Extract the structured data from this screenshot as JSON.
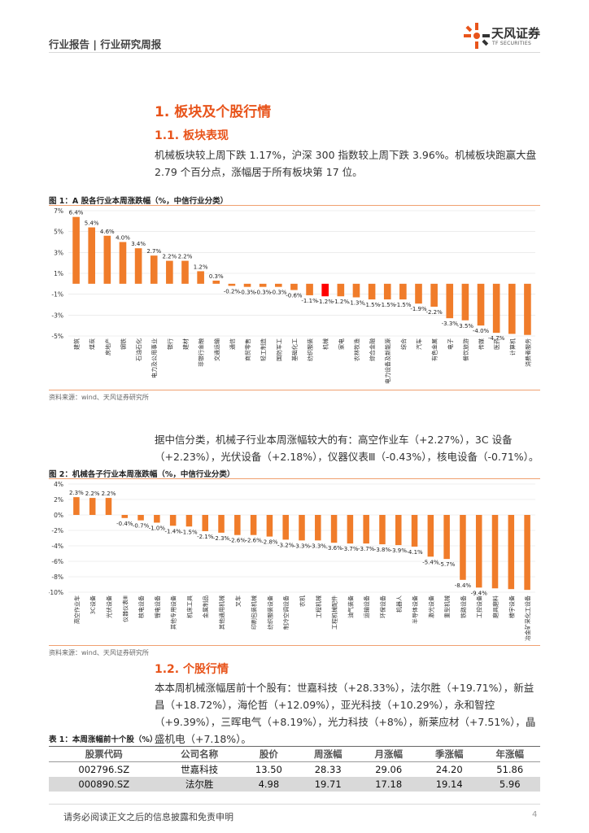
{
  "header": {
    "report_type": "行业报告 | 行业研究周报",
    "brand_name": "天风证券",
    "brand_sub": "TF SECURITIES"
  },
  "section1": {
    "heading": "1. 板块及个股行情",
    "sub_heading": "1.1. 板块表现",
    "paragraph": "机械板块较上周下跌 1.17%，沪深 300 指数较上周下跌 3.96%。机械板块跑赢大盘 2.79 个百分点，涨幅居于所有板块第 17 位。"
  },
  "figure1": {
    "title": "图 1：A 股各行业本周涨跌幅（%，中信行业分类）",
    "source": "资料来源：wind、天风证券研究所"
  },
  "para2": "据中信分类，机械子行业本周涨幅较大的有：高空作业车（+2.27%），3C 设备（+2.23%），光伏设备（+2.18%），仪器仪表Ⅲ（-0.43%），核电设备（-0.71%）。",
  "figure2": {
    "title": "图 2：机械各子行业本周涨跌幅（%，中信行业分类）",
    "source": "资料来源：wind、天风证券研究所"
  },
  "section12": {
    "sub_heading": "1.2. 个股行情",
    "paragraph": "本本周机械涨幅居前十个股有：世嘉科技（+28.33%），法尔胜（+19.71%），新益昌（+18.72%），海伦哲（+12.09%），亚光科技（+10.29%），永和智控（+9.39%），三晖电气（+8.19%），光力科技（+8%），新莱应材（+7.51%），晶盛机电（+7.18%）。"
  },
  "table1": {
    "title": "表 1：本周涨幅前十个股（%）",
    "headers": [
      "股票代码",
      "公司名称",
      "股价",
      "周涨幅",
      "月涨幅",
      "季涨幅",
      "年涨幅"
    ],
    "rows": [
      [
        "002796.SZ",
        "世嘉科技",
        "13.50",
        "28.33",
        "29.06",
        "24.20",
        "51.86"
      ],
      [
        "000890.SZ",
        "法尔胜",
        "4.98",
        "19.71",
        "17.18",
        "19.14",
        "5.96"
      ]
    ]
  },
  "footer": {
    "disclaimer": "请务必阅读正文之后的信息披露和免责申明",
    "page": "4"
  },
  "colors": {
    "accent": "#e8541b",
    "bar": "#f07c2a",
    "highlight": "#ff0000"
  },
  "chart_data": [
    {
      "type": "bar",
      "title": "图 1：A 股各行业本周涨跌幅（%，中信行业分类）",
      "ylim": [
        -5,
        7
      ],
      "yticks": [
        7,
        5,
        3,
        1,
        -1,
        -3,
        -5
      ],
      "ytick_labels": [
        "7%",
        "5%",
        "3%",
        "1%",
        "-1%",
        "-3%",
        "-5%"
      ],
      "highlight_category": "机械",
      "categories": [
        "建筑",
        "煤炭",
        "房地产",
        "钢铁",
        "石油石化",
        "电力及公用事业",
        "银行",
        "建材",
        "非银行金融",
        "交通运输",
        "通信",
        "商贸零售",
        "轻工制造",
        "国防军工",
        "基础化工",
        "纺织服装",
        "机械",
        "家电",
        "农林牧渔",
        "综合金融",
        "电力设备及新能源",
        "综合",
        "汽车",
        "有色金属",
        "电子",
        "餐饮旅游",
        "传媒",
        "医药",
        "计算机",
        "消费者服务"
      ],
      "values": [
        6.4,
        5.4,
        4.6,
        4.0,
        3.4,
        2.7,
        2.2,
        2.2,
        1.2,
        0.3,
        -0.2,
        -0.3,
        -0.3,
        -0.3,
        -0.6,
        -1.1,
        -1.2,
        -1.2,
        -1.3,
        -1.5,
        -1.5,
        -1.5,
        -1.9,
        -2.2,
        -3.3,
        -3.5,
        -4.0,
        -4.7,
        -4.8,
        -4.9
      ],
      "value_labels": [
        "6.4%",
        "5.4%",
        "4.6%",
        "4.0%",
        "3.4%",
        "2.7%",
        "2.2%",
        "2.2%",
        "1.2%",
        "0.3%",
        "-0.2%",
        "-0.3%",
        "-0.3%",
        "-0.3%",
        "-0.6%",
        "-1.1%",
        "-1.2%",
        "-1.2%",
        "-1.3%",
        "-1.5%",
        "-1.5%",
        "-1.5%",
        "-1.9%",
        "-2.2%",
        "-3.3%",
        "-3.5%",
        "-4.0%",
        "-4.7%",
        "",
        ""
      ]
    },
    {
      "type": "bar",
      "title": "图 2：机械各子行业本周涨跌幅（%，中信行业分类）",
      "ylim": [
        -10,
        4
      ],
      "yticks": [
        4,
        2,
        0,
        -2,
        -4,
        -6,
        -8,
        -10
      ],
      "ytick_labels": [
        "4%",
        "2%",
        "0%",
        "-2%",
        "-4%",
        "-6%",
        "-8%",
        "-10%"
      ],
      "categories": [
        "高空作业车",
        "3C设备",
        "光伏设备",
        "仪器仪表Ⅲ",
        "核电设备",
        "锂电设备",
        "其他专用设备",
        "机床工具",
        "金属制品",
        "其他通用机械",
        "叉车",
        "印刷包装机械",
        "纺织服装设备",
        "制冷空调设备",
        "农机",
        "工程机械",
        "工程机械配件",
        "油气装备",
        "运输设备",
        "环保设备",
        "机器人",
        "半导体设备",
        "激光设备",
        "重型机械",
        "铁路设备",
        "工控设备",
        "磨具磨料",
        "楼宇设备",
        "冶金矿采化工设备"
      ],
      "values": [
        2.3,
        2.2,
        2.2,
        -0.4,
        -0.7,
        -1.0,
        -1.4,
        -1.5,
        -2.1,
        -2.3,
        -2.6,
        -2.6,
        -2.8,
        -3.2,
        -3.3,
        -3.3,
        -3.6,
        -3.7,
        -3.7,
        -3.8,
        -3.9,
        -4.1,
        -5.4,
        -5.7,
        -8.4,
        -9.4,
        -9.5,
        -9.6,
        -9.7
      ],
      "value_labels": [
        "2.3%",
        "2.2%",
        "2.2%",
        "-0.4%",
        "-0.7%",
        "-1.0%",
        "-1.4%",
        "-1.5%",
        "-2.1%",
        "-2.3%",
        "-2.6%",
        "-2.6%",
        "-2.8%",
        "-3.2%",
        "-3.3%",
        "-3.3%",
        "-3.6%",
        "-3.7%",
        "-3.7%",
        "-3.8%",
        "-3.9%",
        "-4.1%",
        "-5.4%",
        "-5.7%",
        "-8.4%",
        "-9.4%",
        "",
        "",
        ""
      ]
    }
  ]
}
